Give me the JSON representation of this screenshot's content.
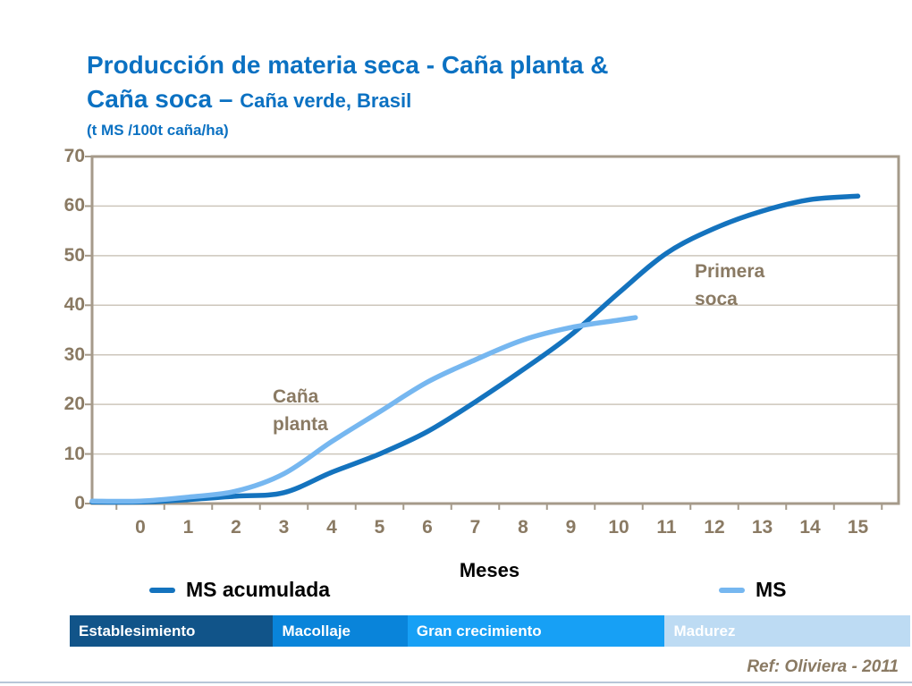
{
  "title": {
    "line1": "Producción de materia seca - Caña planta &",
    "line2_big": "Caña soca – ",
    "line2_small": "Caña verde, Brasil",
    "line3": "(t MS /100t caña/ha)"
  },
  "colors": {
    "title_blue": "#0b71c2",
    "text_taupe": "#8a7a63",
    "axis_line": "#a59a8a",
    "gridline": "#cdc6bb",
    "bottom_rule": "#b7c6d8"
  },
  "chart_data": {
    "type": "line",
    "title": "Producción de materia seca - Caña planta & Caña soca – Caña verde, Brasil",
    "subtitle": "(t MS /100t caña/ha)",
    "xlabel": "Meses",
    "ylabel": "",
    "ylim": [
      0,
      70
    ],
    "y_ticks": [
      0,
      10,
      20,
      30,
      40,
      50,
      60,
      70
    ],
    "x_ticks": [
      0,
      1,
      2,
      3,
      4,
      5,
      6,
      7,
      8,
      9,
      10,
      11,
      12,
      13,
      14,
      15
    ],
    "grid": "horizontal",
    "legend_position": "bottom",
    "series": [
      {
        "name": "MS acumulada",
        "annotation": "Caña planta",
        "color": "#1473be",
        "x": [
          0,
          1,
          2,
          3,
          4,
          5,
          6,
          7,
          8,
          9,
          10,
          11,
          12,
          13,
          14,
          15
        ],
        "values": [
          0.3,
          0.8,
          1.5,
          2.2,
          6.3,
          10,
          14.5,
          20.5,
          27,
          34,
          42.5,
          50.5,
          55.5,
          59,
          61.3,
          62
        ]
      },
      {
        "name": "MS",
        "annotation": "Primera soca",
        "color": "#76b7f0",
        "x": [
          0,
          1,
          2,
          3,
          4,
          5,
          6,
          7,
          8,
          9,
          10,
          10.35
        ],
        "values": [
          0.5,
          1.3,
          2.5,
          6,
          12.5,
          18.5,
          24.5,
          29,
          33,
          35.5,
          37,
          37.5
        ]
      }
    ],
    "annotations": [
      {
        "lines": [
          "Primera",
          "soca"
        ]
      },
      {
        "lines": [
          "Caña",
          "planta"
        ]
      }
    ]
  },
  "legend": {
    "items": [
      {
        "label": "MS acumulada"
      },
      {
        "label": "MS"
      }
    ]
  },
  "phases": {
    "items": [
      {
        "label": "Establesimiento",
        "color": "#115489",
        "width_pct": 24.2
      },
      {
        "label": "Macollaje",
        "color": "#0984da",
        "width_pct": 16.0
      },
      {
        "label": "Gran crecimiento",
        "color": "#17a0f5",
        "width_pct": 30.6
      },
      {
        "label": "Madurez",
        "color": "#bddbf3",
        "width_pct": 29.2
      }
    ]
  },
  "footer": {
    "ref": "Ref: Oliviera - 2011"
  }
}
